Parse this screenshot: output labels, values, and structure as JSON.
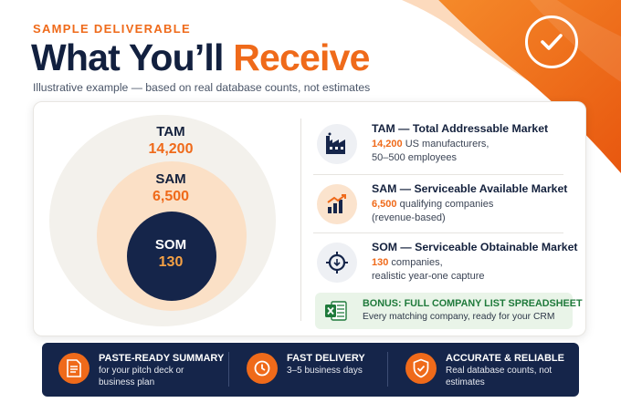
{
  "header": {
    "eyebrow": "SAMPLE DELIVERABLE",
    "title_main": "What You’ll ",
    "title_accent": "Receive",
    "subtitle": "Illustrative example — based on real database counts, not estimates"
  },
  "circles": {
    "tam": {
      "label": "TAM",
      "value": "14,200"
    },
    "sam": {
      "label": "SAM",
      "value": "6,500"
    },
    "som": {
      "label": "SOM",
      "value": "130"
    }
  },
  "markets": [
    {
      "icon": "factory-icon",
      "title": "TAM — Total Addressable Market",
      "highlight": "14,200",
      "desc_rest": " US manufacturers,",
      "desc_line2": "50–500 employees"
    },
    {
      "icon": "growth-chart-icon",
      "title": "SAM — Serviceable Available Market",
      "highlight": "6,500",
      "desc_rest": " qualifying companies",
      "desc_line2": "(revenue-based)"
    },
    {
      "icon": "target-icon",
      "title": "SOM — Serviceable Obtainable Market",
      "highlight": "130",
      "desc_rest": " companies,",
      "desc_line2": "realistic year-one capture"
    }
  ],
  "bonus": {
    "icon": "excel-icon",
    "title": "BONUS: FULL COMPANY LIST SPREADSHEET",
    "desc": "Every matching company, ready for your CRM"
  },
  "features": [
    {
      "icon": "document-icon",
      "title": "PASTE-READY SUMMARY",
      "desc": "for your pitch deck or business plan"
    },
    {
      "icon": "clock-icon",
      "title": "FAST DELIVERY",
      "desc": "3–5 business days"
    },
    {
      "icon": "shield-check-icon",
      "title": "ACCURATE & RELIABLE",
      "desc": "Real database counts, not estimates"
    }
  ],
  "colors": {
    "accent": "#ef6a1a",
    "navy": "#15254a",
    "bonus_green": "#1f7a3b"
  }
}
